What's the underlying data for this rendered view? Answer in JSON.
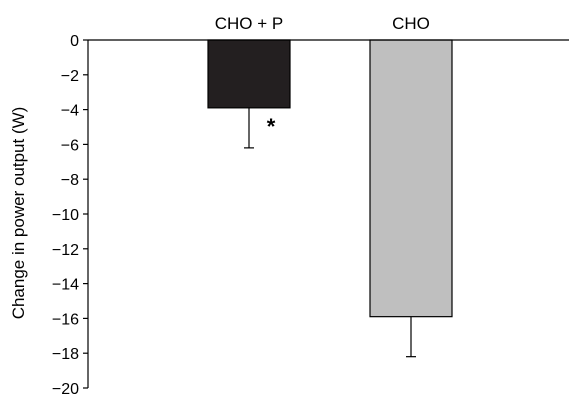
{
  "chart_data": {
    "type": "bar",
    "categories": [
      "CHO + P",
      "CHO"
    ],
    "values": [
      -3.9,
      -15.9
    ],
    "error_low": [
      2.3,
      2.3
    ],
    "colors": [
      "#231f20",
      "#bfbfbf"
    ],
    "ylabel": "Change in power output (W)",
    "xlabel": "",
    "ylim": [
      -20,
      0
    ],
    "yticks": [
      0,
      -2,
      -4,
      -6,
      -8,
      -10,
      -12,
      -14,
      -16,
      -18,
      -20
    ],
    "ytick_labels": [
      "0",
      "−2",
      "−4",
      "−6",
      "−8",
      "−10",
      "−12",
      "−14",
      "−16",
      "−18",
      "−20"
    ],
    "grid": false,
    "legend": "none",
    "annotations": [
      {
        "text": "*",
        "category": "CHO + P"
      }
    ]
  }
}
